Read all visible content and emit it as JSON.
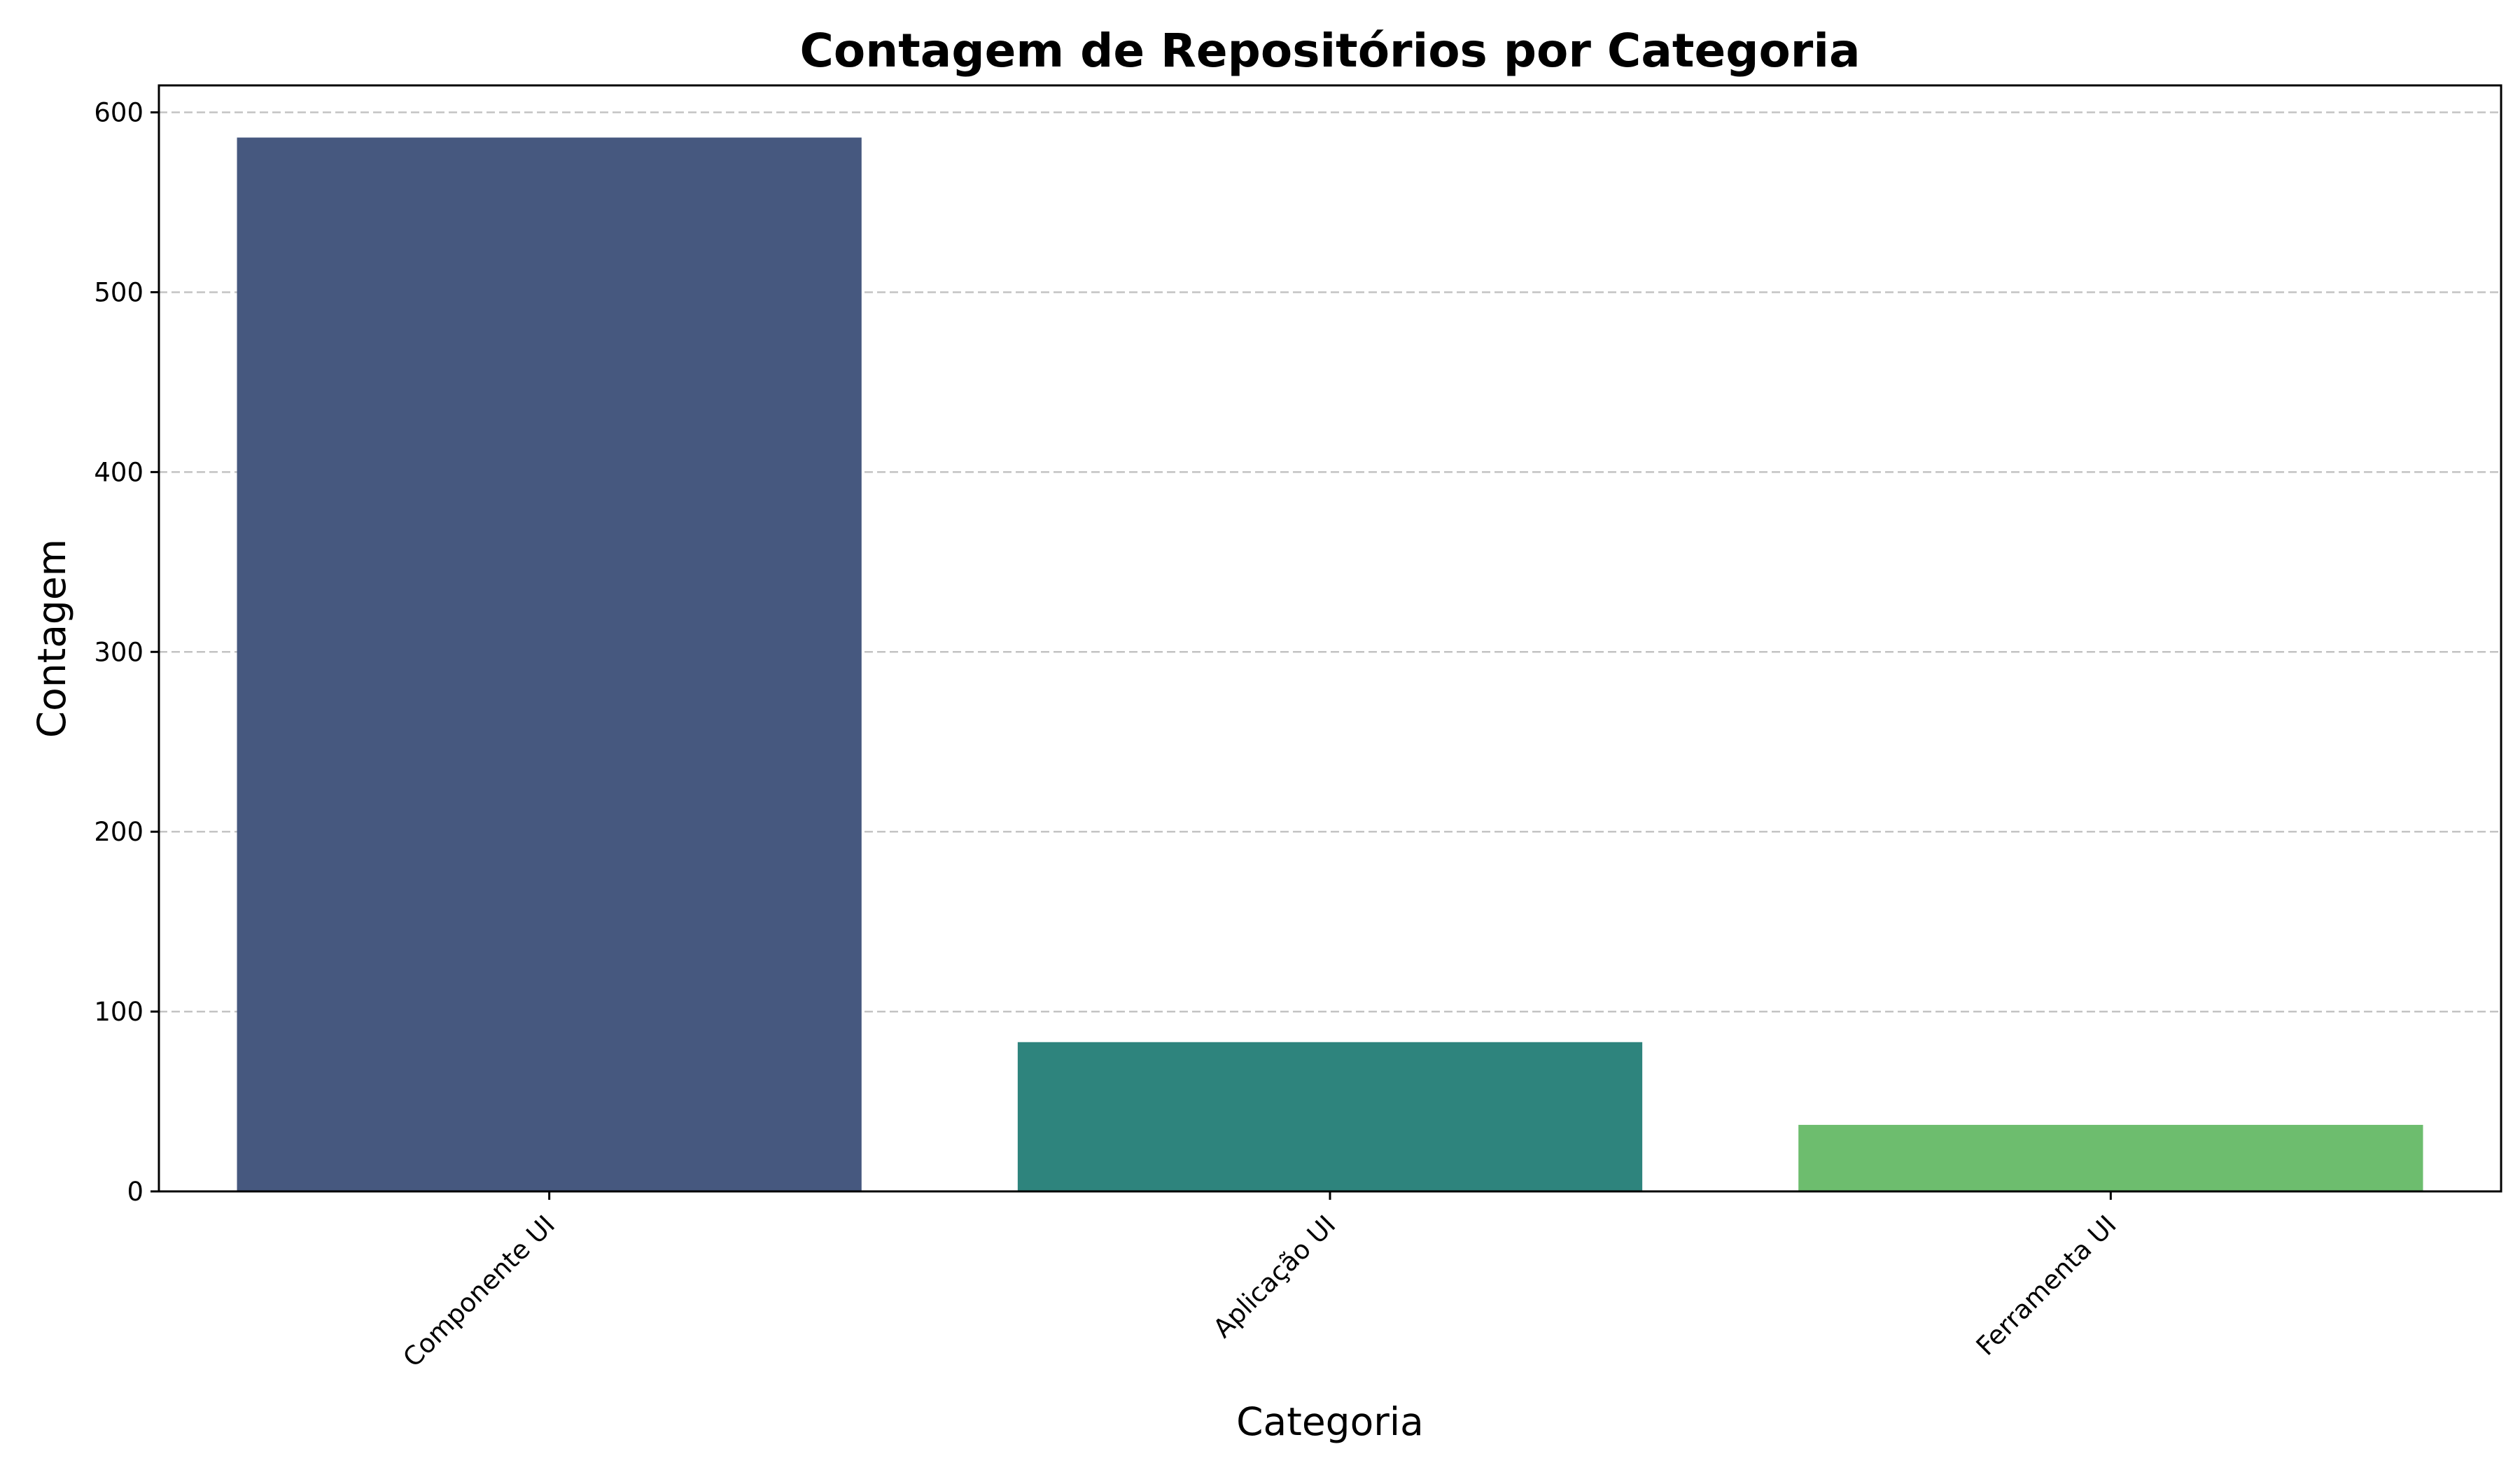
{
  "chart_data": {
    "type": "bar",
    "title": "Contagem de Repositórios por Categoria",
    "xlabel": "Categoria",
    "ylabel": "Contagem",
    "categories": [
      "Componente UI",
      "Aplicação UI",
      "Ferramenta UI"
    ],
    "values": [
      586,
      83,
      37
    ],
    "colors": [
      "#46587f",
      "#2e847d",
      "#6dbd6e"
    ],
    "ylim": [
      0,
      615
    ],
    "yticks": [
      0,
      100,
      200,
      300,
      400,
      500,
      600
    ],
    "grid": "y-dashed",
    "legend": "none"
  }
}
